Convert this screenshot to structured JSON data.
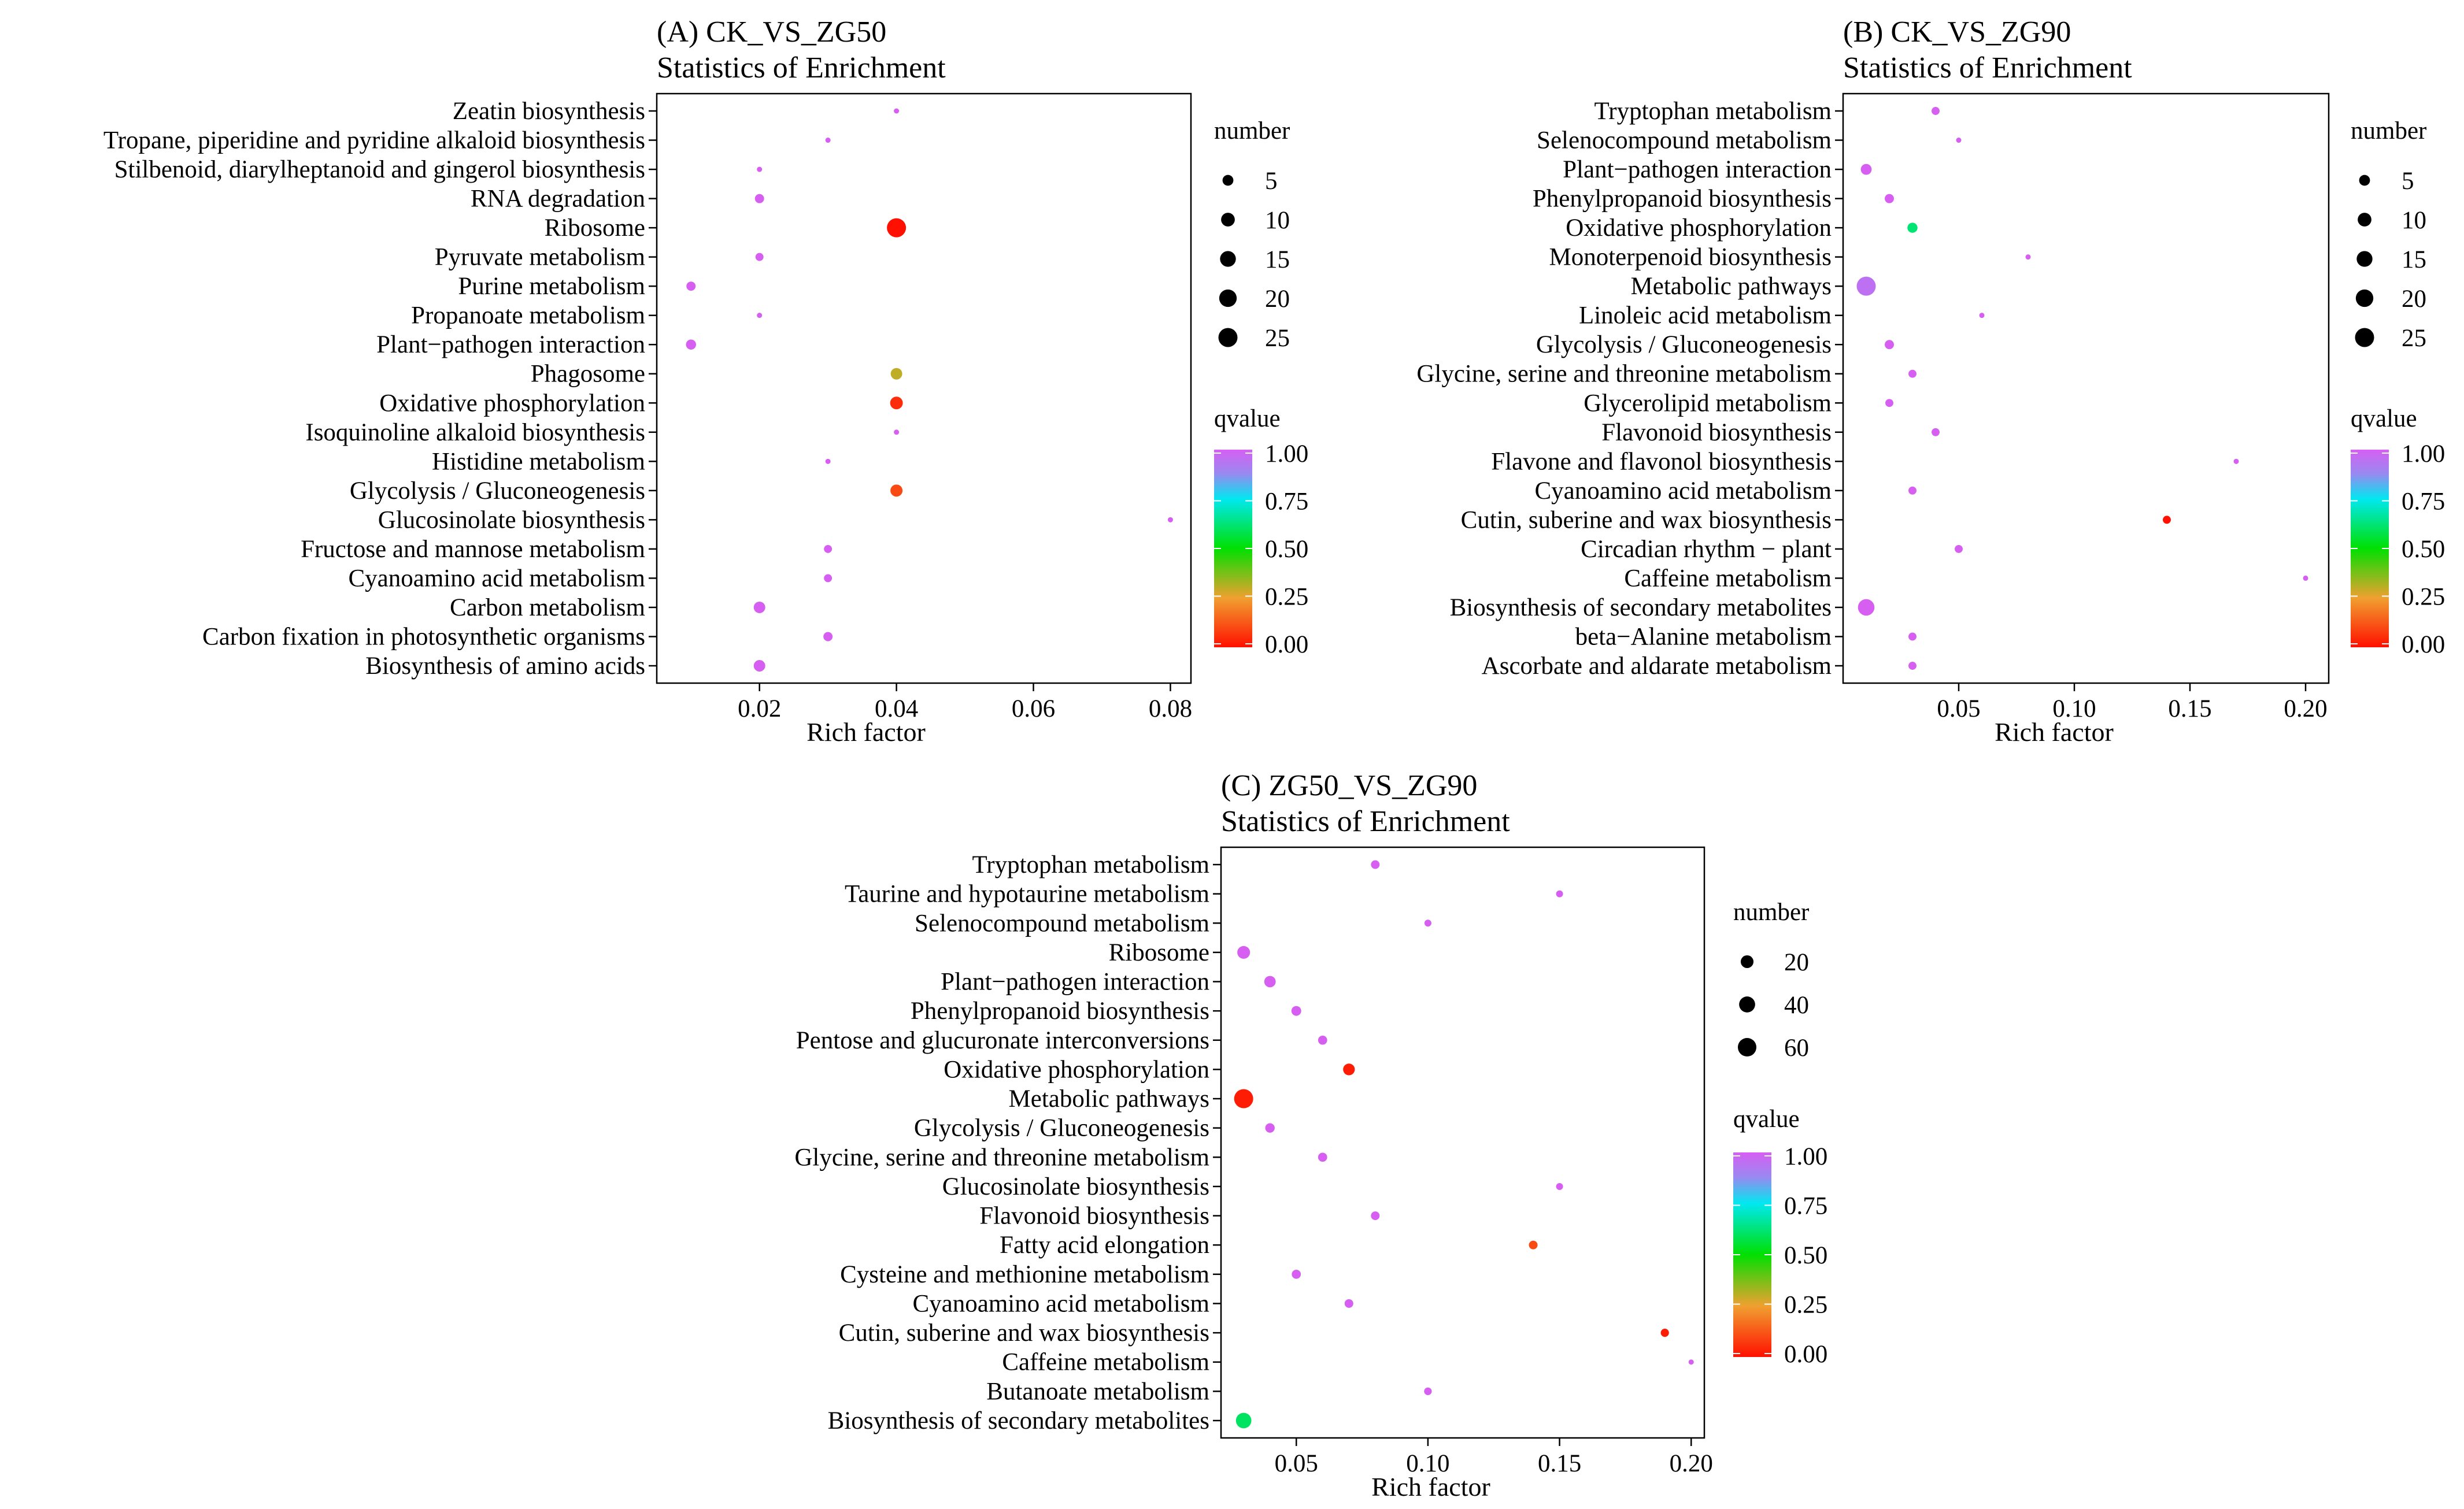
{
  "chart_data": [
    {
      "type": "scatter",
      "panel_label": "(A) CK_VS_ZG50",
      "title": "Statistics of Enrichment",
      "xlabel": "Rich factor",
      "ylabel": "",
      "xlim": [
        0.005,
        0.083
      ],
      "xticks": [
        0.02,
        0.04,
        0.06,
        0.08
      ],
      "xtick_labels": [
        "0.02",
        "0.04",
        "0.06",
        "0.08"
      ],
      "size_legend_title": "number",
      "size_legend_values": [
        5,
        10,
        15,
        20,
        25
      ],
      "size_range": [
        1,
        25
      ],
      "color_legend_title": "qvalue",
      "color_legend_ticks": [
        "1.00",
        "0.75",
        "0.50",
        "0.25",
        "0.00"
      ],
      "points": [
        {
          "pathway": "Zeatin biosynthesis",
          "rich_factor": 0.04,
          "number": 1,
          "qvalue": 1.0
        },
        {
          "pathway": "Tropane, piperidine and pyridine alkaloid biosynthesis",
          "rich_factor": 0.03,
          "number": 1,
          "qvalue": 1.0
        },
        {
          "pathway": "Stilbenoid, diarylheptanoid and gingerol biosynthesis",
          "rich_factor": 0.02,
          "number": 1,
          "qvalue": 1.0
        },
        {
          "pathway": "RNA degradation",
          "rich_factor": 0.02,
          "number": 3,
          "qvalue": 1.0
        },
        {
          "pathway": "Ribosome",
          "rich_factor": 0.04,
          "number": 25,
          "qvalue": 0.0
        },
        {
          "pathway": "Pyruvate metabolism",
          "rich_factor": 0.02,
          "number": 2,
          "qvalue": 1.0
        },
        {
          "pathway": "Purine metabolism",
          "rich_factor": 0.01,
          "number": 3,
          "qvalue": 1.0
        },
        {
          "pathway": "Propanoate metabolism",
          "rich_factor": 0.02,
          "number": 1,
          "qvalue": 1.0
        },
        {
          "pathway": "Plant−pathogen interaction",
          "rich_factor": 0.01,
          "number": 4,
          "qvalue": 1.0
        },
        {
          "pathway": "Phagosome",
          "rich_factor": 0.04,
          "number": 6,
          "qvalue": 0.3
        },
        {
          "pathway": "Oxidative phosphorylation",
          "rich_factor": 0.04,
          "number": 8,
          "qvalue": 0.05
        },
        {
          "pathway": "Isoquinoline alkaloid biosynthesis",
          "rich_factor": 0.04,
          "number": 1,
          "qvalue": 1.0
        },
        {
          "pathway": "Histidine metabolism",
          "rich_factor": 0.03,
          "number": 1,
          "qvalue": 1.0
        },
        {
          "pathway": "Glycolysis / Gluconeogenesis",
          "rich_factor": 0.04,
          "number": 7,
          "qvalue": 0.1
        },
        {
          "pathway": "Glucosinolate biosynthesis",
          "rich_factor": 0.08,
          "number": 1,
          "qvalue": 1.0
        },
        {
          "pathway": "Fructose and mannose metabolism",
          "rich_factor": 0.03,
          "number": 2,
          "qvalue": 1.0
        },
        {
          "pathway": "Cyanoamino acid metabolism",
          "rich_factor": 0.03,
          "number": 2,
          "qvalue": 1.0
        },
        {
          "pathway": "Carbon metabolism",
          "rich_factor": 0.02,
          "number": 6,
          "qvalue": 1.0
        },
        {
          "pathway": "Carbon fixation in photosynthetic organisms",
          "rich_factor": 0.03,
          "number": 3,
          "qvalue": 1.0
        },
        {
          "pathway": "Biosynthesis of amino acids",
          "rich_factor": 0.02,
          "number": 6,
          "qvalue": 1.0
        }
      ]
    },
    {
      "type": "scatter",
      "panel_label": "(B) CK_VS_ZG90",
      "title": "Statistics of Enrichment",
      "xlabel": "Rich factor",
      "ylabel": "",
      "xlim": [
        0.0,
        0.21
      ],
      "xticks": [
        0.05,
        0.1,
        0.15,
        0.2
      ],
      "xtick_labels": [
        "0.05",
        "0.10",
        "0.15",
        "0.20"
      ],
      "size_legend_title": "number",
      "size_legend_values": [
        5,
        10,
        15,
        20,
        25
      ],
      "size_range": [
        1,
        25
      ],
      "color_legend_title": "qvalue",
      "color_legend_ticks": [
        "1.00",
        "0.75",
        "0.50",
        "0.25",
        "0.00"
      ],
      "points": [
        {
          "pathway": "Tryptophan metabolism",
          "rich_factor": 0.04,
          "number": 2,
          "qvalue": 1.0
        },
        {
          "pathway": "Selenocompound metabolism",
          "rich_factor": 0.05,
          "number": 1,
          "qvalue": 1.0
        },
        {
          "pathway": "Plant−pathogen interaction",
          "rich_factor": 0.01,
          "number": 5,
          "qvalue": 1.0
        },
        {
          "pathway": "Phenylpropanoid biosynthesis",
          "rich_factor": 0.02,
          "number": 3,
          "qvalue": 1.0
        },
        {
          "pathway": "Oxidative phosphorylation",
          "rich_factor": 0.03,
          "number": 4,
          "qvalue": 0.62
        },
        {
          "pathway": "Monoterpenoid biosynthesis",
          "rich_factor": 0.08,
          "number": 1,
          "qvalue": 1.0
        },
        {
          "pathway": "Metabolic pathways",
          "rich_factor": 0.01,
          "number": 25,
          "qvalue": 0.95
        },
        {
          "pathway": "Linoleic acid metabolism",
          "rich_factor": 0.06,
          "number": 1,
          "qvalue": 1.0
        },
        {
          "pathway": "Glycolysis / Gluconeogenesis",
          "rich_factor": 0.02,
          "number": 3,
          "qvalue": 1.0
        },
        {
          "pathway": "Glycine, serine and threonine metabolism",
          "rich_factor": 0.03,
          "number": 2,
          "qvalue": 1.0
        },
        {
          "pathway": "Glycerolipid metabolism",
          "rich_factor": 0.02,
          "number": 2,
          "qvalue": 1.0
        },
        {
          "pathway": "Flavonoid biosynthesis",
          "rich_factor": 0.04,
          "number": 2,
          "qvalue": 1.0
        },
        {
          "pathway": "Flavone and flavonol biosynthesis",
          "rich_factor": 0.17,
          "number": 1,
          "qvalue": 1.0
        },
        {
          "pathway": "Cyanoamino acid metabolism",
          "rich_factor": 0.03,
          "number": 2,
          "qvalue": 1.0
        },
        {
          "pathway": "Cutin, suberine and wax biosynthesis",
          "rich_factor": 0.14,
          "number": 2,
          "qvalue": 0.0
        },
        {
          "pathway": "Circadian rhythm − plant",
          "rich_factor": 0.05,
          "number": 2,
          "qvalue": 1.0
        },
        {
          "pathway": "Caffeine metabolism",
          "rich_factor": 0.2,
          "number": 1,
          "qvalue": 1.0
        },
        {
          "pathway": "Biosynthesis of secondary metabolites",
          "rich_factor": 0.01,
          "number": 17,
          "qvalue": 1.0
        },
        {
          "pathway": "beta−Alanine metabolism",
          "rich_factor": 0.03,
          "number": 2,
          "qvalue": 1.0
        },
        {
          "pathway": "Ascorbate and aldarate metabolism",
          "rich_factor": 0.03,
          "number": 2,
          "qvalue": 1.0
        }
      ]
    },
    {
      "type": "scatter",
      "panel_label": "(C) ZG50_VS_ZG90",
      "title": "Statistics of Enrichment",
      "xlabel": "Rich factor",
      "ylabel": "",
      "xlim": [
        0.0214,
        0.205
      ],
      "xticks": [
        0.05,
        0.1,
        0.15,
        0.2
      ],
      "xtick_labels": [
        "0.05",
        "0.10",
        "0.15",
        "0.20"
      ],
      "size_legend_title": "number",
      "size_legend_values": [
        20,
        40,
        60
      ],
      "size_range": [
        1,
        65
      ],
      "color_legend_title": "qvalue",
      "color_legend_ticks": [
        "1.00",
        "0.75",
        "0.50",
        "0.25",
        "0.00"
      ],
      "points": [
        {
          "pathway": "Tryptophan metabolism",
          "rich_factor": 0.08,
          "number": 5,
          "qvalue": 1.0
        },
        {
          "pathway": "Taurine and hypotaurine metabolism",
          "rich_factor": 0.15,
          "number": 2,
          "qvalue": 1.0
        },
        {
          "pathway": "Selenocompound metabolism",
          "rich_factor": 0.1,
          "number": 2,
          "qvalue": 1.0
        },
        {
          "pathway": "Ribosome",
          "rich_factor": 0.03,
          "number": 20,
          "qvalue": 1.0
        },
        {
          "pathway": "Plant−pathogen interaction",
          "rich_factor": 0.04,
          "number": 14,
          "qvalue": 1.0
        },
        {
          "pathway": "Phenylpropanoid biosynthesis",
          "rich_factor": 0.05,
          "number": 8,
          "qvalue": 1.0
        },
        {
          "pathway": "Pentose and glucuronate interconversions",
          "rich_factor": 0.06,
          "number": 6,
          "qvalue": 1.0
        },
        {
          "pathway": "Oxidative phosphorylation",
          "rich_factor": 0.07,
          "number": 15,
          "qvalue": 0.02
        },
        {
          "pathway": "Metabolic pathways",
          "rich_factor": 0.03,
          "number": 65,
          "qvalue": 0.02
        },
        {
          "pathway": "Glycolysis / Gluconeogenesis",
          "rich_factor": 0.04,
          "number": 7,
          "qvalue": 1.0
        },
        {
          "pathway": "Glycine, serine and threonine metabolism",
          "rich_factor": 0.06,
          "number": 6,
          "qvalue": 1.0
        },
        {
          "pathway": "Glucosinolate biosynthesis",
          "rich_factor": 0.15,
          "number": 2,
          "qvalue": 1.0
        },
        {
          "pathway": "Flavonoid biosynthesis",
          "rich_factor": 0.08,
          "number": 5,
          "qvalue": 1.0
        },
        {
          "pathway": "Fatty acid elongation",
          "rich_factor": 0.14,
          "number": 5,
          "qvalue": 0.1
        },
        {
          "pathway": "Cysteine and methionine metabolism",
          "rich_factor": 0.05,
          "number": 6,
          "qvalue": 1.0
        },
        {
          "pathway": "Cyanoamino acid metabolism",
          "rich_factor": 0.07,
          "number": 5,
          "qvalue": 1.0
        },
        {
          "pathway": "Cutin, suberine and wax biosynthesis",
          "rich_factor": 0.19,
          "number": 4,
          "qvalue": 0.02
        },
        {
          "pathway": "Caffeine metabolism",
          "rich_factor": 0.2,
          "number": 1,
          "qvalue": 1.0
        },
        {
          "pathway": "Butanoate metabolism",
          "rich_factor": 0.1,
          "number": 3,
          "qvalue": 1.0
        },
        {
          "pathway": "Biosynthesis of secondary metabolites",
          "rich_factor": 0.03,
          "number": 36,
          "qvalue": 0.6
        }
      ]
    }
  ]
}
